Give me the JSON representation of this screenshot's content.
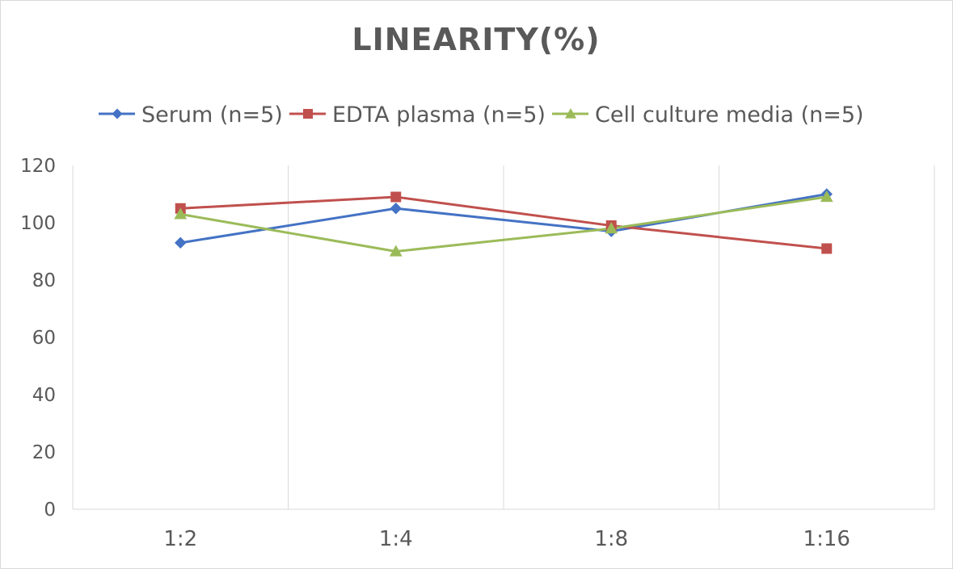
{
  "chart_data": {
    "type": "line",
    "title": "LINEARITY(%)",
    "categories": [
      "1:2",
      "1:4",
      "1:8",
      "1:16"
    ],
    "ylim": [
      0,
      120
    ],
    "yticks": [
      0,
      20,
      40,
      60,
      80,
      100,
      120
    ],
    "grid": "vertical",
    "legend_position": "top",
    "series": [
      {
        "name": "Serum (n=5)",
        "color": "#4472C4",
        "marker": "diamond",
        "values": [
          93,
          105,
          97,
          110
        ]
      },
      {
        "name": "EDTA plasma (n=5)",
        "color": "#C0504D",
        "marker": "square",
        "values": [
          105,
          109,
          99,
          91
        ]
      },
      {
        "name": "Cell culture media (n=5)",
        "color": "#9BBB59",
        "marker": "triangle",
        "values": [
          103,
          90,
          98,
          109
        ]
      }
    ]
  }
}
